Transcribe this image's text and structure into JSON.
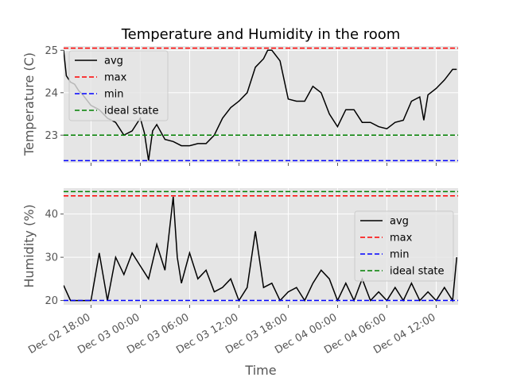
{
  "chart_data": [
    {
      "type": "line",
      "title": "Temperature and Humidity in the room",
      "xlabel": "",
      "ylabel": "Temperature (C)",
      "ylim": [
        22.35,
        25.1
      ],
      "yticks": [
        23,
        24,
        25
      ],
      "x_tick_labels": [
        "Dec 02 18:00",
        "Dec 03 00:00",
        "Dec 03 06:00",
        "Dec 03 12:00",
        "Dec 03 18:00",
        "Dec 04 00:00",
        "Dec 04 06:00",
        "Dec 04 12:00"
      ],
      "grid": true,
      "legend_position": "upper-left",
      "series": [
        {
          "name": "avg",
          "color": "#000000",
          "style": "solid",
          "points": [
            [
              "2022-12-02T14:40",
              25.0
            ],
            [
              "2022-12-02T15:00",
              24.4
            ],
            [
              "2022-12-02T15:30",
              24.25
            ],
            [
              "2022-12-02T16:00",
              24.2
            ],
            [
              "2022-12-02T16:30",
              24.05
            ],
            [
              "2022-12-02T17:00",
              23.95
            ],
            [
              "2022-12-02T18:00",
              23.7
            ],
            [
              "2022-12-02T19:00",
              23.6
            ],
            [
              "2022-12-02T20:00",
              23.4
            ],
            [
              "2022-12-02T21:00",
              23.3
            ],
            [
              "2022-12-02T22:00",
              23.0
            ],
            [
              "2022-12-02T23:00",
              23.1
            ],
            [
              "2022-12-03T00:00",
              23.4
            ],
            [
              "2022-12-03T00:30",
              23.05
            ],
            [
              "2022-12-03T01:00",
              22.4
            ],
            [
              "2022-12-03T01:30",
              23.1
            ],
            [
              "2022-12-03T02:00",
              23.25
            ],
            [
              "2022-12-03T03:00",
              22.9
            ],
            [
              "2022-12-03T04:00",
              22.85
            ],
            [
              "2022-12-03T05:00",
              22.75
            ],
            [
              "2022-12-03T06:00",
              22.75
            ],
            [
              "2022-12-03T07:00",
              22.8
            ],
            [
              "2022-12-03T08:00",
              22.8
            ],
            [
              "2022-12-03T09:00",
              23.0
            ],
            [
              "2022-12-03T10:00",
              23.4
            ],
            [
              "2022-12-03T11:00",
              23.65
            ],
            [
              "2022-12-03T12:00",
              23.8
            ],
            [
              "2022-12-03T13:00",
              24.0
            ],
            [
              "2022-12-03T14:00",
              24.6
            ],
            [
              "2022-12-03T15:00",
              24.8
            ],
            [
              "2022-12-03T15:30",
              25.0
            ],
            [
              "2022-12-03T16:00",
              25.0
            ],
            [
              "2022-12-03T17:00",
              24.75
            ],
            [
              "2022-12-03T18:00",
              23.85
            ],
            [
              "2022-12-03T19:00",
              23.8
            ],
            [
              "2022-12-03T20:00",
              23.8
            ],
            [
              "2022-12-03T21:00",
              24.15
            ],
            [
              "2022-12-03T22:00",
              24.0
            ],
            [
              "2022-12-03T23:00",
              23.5
            ],
            [
              "2022-12-04T00:00",
              23.2
            ],
            [
              "2022-12-04T01:00",
              23.6
            ],
            [
              "2022-12-04T02:00",
              23.6
            ],
            [
              "2022-12-04T03:00",
              23.3
            ],
            [
              "2022-12-04T04:00",
              23.3
            ],
            [
              "2022-12-04T05:00",
              23.2
            ],
            [
              "2022-12-04T06:00",
              23.15
            ],
            [
              "2022-12-04T07:00",
              23.3
            ],
            [
              "2022-12-04T08:00",
              23.35
            ],
            [
              "2022-12-04T09:00",
              23.8
            ],
            [
              "2022-12-04T10:00",
              23.9
            ],
            [
              "2022-12-04T10:30",
              23.35
            ],
            [
              "2022-12-04T11:00",
              23.95
            ],
            [
              "2022-12-04T12:00",
              24.1
            ],
            [
              "2022-12-04T13:00",
              24.3
            ],
            [
              "2022-12-04T14:00",
              24.55
            ],
            [
              "2022-12-04T14:30",
              24.55
            ]
          ]
        },
        {
          "name": "max",
          "color": "#ff0000",
          "style": "dashed",
          "value": 25.05
        },
        {
          "name": "min",
          "color": "#0000ff",
          "style": "dashed",
          "value": 22.4
        },
        {
          "name": "ideal state",
          "color": "#008000",
          "style": "dashed",
          "value": 23.0
        }
      ]
    },
    {
      "type": "line",
      "title": "",
      "xlabel": "Time",
      "ylabel": "Humidity (%)",
      "ylim": [
        19,
        46
      ],
      "yticks": [
        20,
        30,
        40
      ],
      "x_tick_labels": [
        "Dec 02 18:00",
        "Dec 03 00:00",
        "Dec 03 06:00",
        "Dec 03 12:00",
        "Dec 03 18:00",
        "Dec 04 00:00",
        "Dec 04 06:00",
        "Dec 04 12:00"
      ],
      "grid": true,
      "legend_position": "center-right",
      "series": [
        {
          "name": "avg",
          "color": "#000000",
          "style": "solid",
          "points": [
            [
              "2022-12-02T14:40",
              23.5
            ],
            [
              "2022-12-02T15:30",
              20
            ],
            [
              "2022-12-02T17:00",
              20
            ],
            [
              "2022-12-02T18:00",
              20
            ],
            [
              "2022-12-02T19:00",
              31
            ],
            [
              "2022-12-02T20:00",
              20
            ],
            [
              "2022-12-02T21:00",
              30
            ],
            [
              "2022-12-02T22:00",
              26
            ],
            [
              "2022-12-02T23:00",
              31
            ],
            [
              "2022-12-03T00:00",
              28
            ],
            [
              "2022-12-03T01:00",
              25
            ],
            [
              "2022-12-03T02:00",
              33
            ],
            [
              "2022-12-03T03:00",
              27
            ],
            [
              "2022-12-03T04:00",
              44
            ],
            [
              "2022-12-03T04:30",
              30
            ],
            [
              "2022-12-03T05:00",
              24
            ],
            [
              "2022-12-03T06:00",
              31
            ],
            [
              "2022-12-03T07:00",
              25
            ],
            [
              "2022-12-03T08:00",
              27
            ],
            [
              "2022-12-03T09:00",
              22
            ],
            [
              "2022-12-03T10:00",
              23
            ],
            [
              "2022-12-03T11:00",
              25
            ],
            [
              "2022-12-03T12:00",
              20
            ],
            [
              "2022-12-03T13:00",
              23
            ],
            [
              "2022-12-03T14:00",
              36
            ],
            [
              "2022-12-03T15:00",
              23
            ],
            [
              "2022-12-03T16:00",
              24
            ],
            [
              "2022-12-03T17:00",
              20
            ],
            [
              "2022-12-03T18:00",
              22
            ],
            [
              "2022-12-03T19:00",
              23
            ],
            [
              "2022-12-03T20:00",
              20
            ],
            [
              "2022-12-03T21:00",
              24
            ],
            [
              "2022-12-03T22:00",
              27
            ],
            [
              "2022-12-03T23:00",
              25
            ],
            [
              "2022-12-04T00:00",
              20
            ],
            [
              "2022-12-04T01:00",
              24
            ],
            [
              "2022-12-04T02:00",
              20
            ],
            [
              "2022-12-04T03:00",
              25
            ],
            [
              "2022-12-04T04:00",
              20
            ],
            [
              "2022-12-04T05:00",
              22
            ],
            [
              "2022-12-04T06:00",
              20
            ],
            [
              "2022-12-04T07:00",
              23
            ],
            [
              "2022-12-04T08:00",
              20
            ],
            [
              "2022-12-04T09:00",
              24
            ],
            [
              "2022-12-04T10:00",
              20
            ],
            [
              "2022-12-04T11:00",
              22
            ],
            [
              "2022-12-04T12:00",
              20
            ],
            [
              "2022-12-04T13:00",
              23
            ],
            [
              "2022-12-04T14:00",
              20
            ],
            [
              "2022-12-04T14:30",
              30
            ]
          ]
        },
        {
          "name": "max",
          "color": "#ff0000",
          "style": "dashed",
          "value": 44.2
        },
        {
          "name": "min",
          "color": "#0000ff",
          "style": "dashed",
          "value": 20
        },
        {
          "name": "ideal state",
          "color": "#008000",
          "style": "dashed",
          "value": 45.2
        }
      ]
    }
  ]
}
